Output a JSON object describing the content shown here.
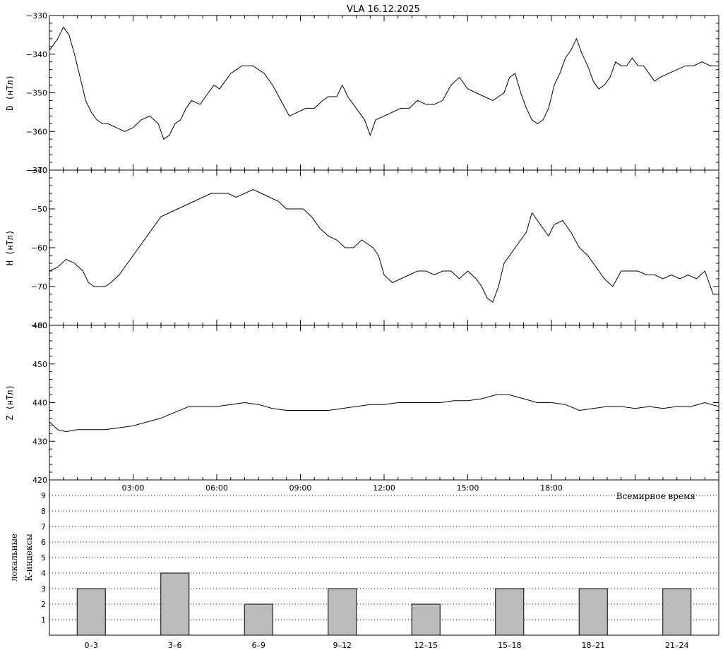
{
  "title": "VLA   16.12.2025",
  "chart_data": [
    {
      "type": "line",
      "ylabel": "D (нТл)",
      "ylim": [
        -370,
        -330
      ],
      "yticks": [
        -370,
        -360,
        -350,
        -340,
        -330
      ],
      "x_unit": "hours UT",
      "xlim": [
        0,
        24
      ],
      "series": [
        {
          "x": [
            0,
            0.3,
            0.5,
            0.7,
            0.9,
            1.1,
            1.3,
            1.5,
            1.7,
            1.9,
            2.1,
            2.4,
            2.7,
            3,
            3.3,
            3.6,
            3.9,
            4.1,
            4.3,
            4.5,
            4.7,
            4.9,
            5.1,
            5.4,
            5.7,
            5.9,
            6.1,
            6.3,
            6.5,
            6.7,
            6.9,
            7.1,
            7.3,
            7.5,
            7.7,
            8,
            8.3,
            8.6,
            8.9,
            9.2,
            9.5,
            9.8,
            10,
            10.3,
            10.5,
            10.7,
            10.9,
            11.1,
            11.3,
            11.5,
            11.7,
            12,
            12.3,
            12.6,
            12.9,
            13.2,
            13.5,
            13.8,
            14.1,
            14.4,
            14.7,
            15,
            15.3,
            15.6,
            15.9,
            16.1,
            16.3,
            16.5,
            16.7,
            16.9,
            17.1,
            17.3,
            17.5,
            17.7,
            17.9,
            18.1,
            18.3,
            18.5,
            18.7,
            18.9,
            19.1,
            19.3,
            19.5,
            19.7,
            19.9,
            20.1,
            20.3,
            20.5,
            20.7,
            20.9,
            21.1,
            21.3,
            21.5,
            21.7,
            21.9,
            22.2,
            22.5,
            22.8,
            23.1,
            23.4,
            23.7,
            24
          ],
          "y": [
            -339,
            -336,
            -333,
            -335,
            -340,
            -346,
            -352,
            -355,
            -357,
            -358,
            -358,
            -359,
            -360,
            -359,
            -357,
            -356,
            -358,
            -362,
            -361,
            -358,
            -357,
            -354,
            -352,
            -353,
            -350,
            -348,
            -349,
            -347,
            -345,
            -344,
            -343,
            -343,
            -343,
            -344,
            -345,
            -348,
            -352,
            -356,
            -355,
            -354,
            -354,
            -352,
            -351,
            -351,
            -348,
            -351,
            -353,
            -355,
            -357,
            -361,
            -357,
            -356,
            -355,
            -354,
            -354,
            -352,
            -353,
            -353,
            -352,
            -348,
            -346,
            -349,
            -350,
            -351,
            -352,
            -351,
            -350,
            -346,
            -345,
            -350,
            -354,
            -357,
            -358,
            -357,
            -354,
            -348,
            -345,
            -341,
            -339,
            -336,
            -340,
            -343,
            -347,
            -349,
            -348,
            -346,
            -342,
            -343,
            -343,
            -341,
            -343,
            -343,
            -345,
            -347,
            -346,
            -345,
            -344,
            -343,
            -343,
            -342,
            -343,
            -343
          ]
        }
      ]
    },
    {
      "type": "line",
      "ylabel": "H (нТл)",
      "ylim": [
        -80,
        -40
      ],
      "yticks": [
        -80,
        -70,
        -60,
        -50,
        -40
      ],
      "x_unit": "hours UT",
      "xlim": [
        0,
        24
      ],
      "series": [
        {
          "x": [
            0,
            0.3,
            0.6,
            0.9,
            1.2,
            1.4,
            1.6,
            1.8,
            2,
            2.2,
            2.5,
            2.8,
            3.1,
            3.4,
            3.7,
            4,
            4.3,
            4.6,
            4.9,
            5.2,
            5.5,
            5.8,
            6.1,
            6.4,
            6.7,
            7,
            7.3,
            7.6,
            7.9,
            8.2,
            8.5,
            8.8,
            9.1,
            9.4,
            9.7,
            10,
            10.3,
            10.6,
            10.9,
            11.2,
            11.4,
            11.6,
            11.8,
            12,
            12.3,
            12.6,
            12.9,
            13.2,
            13.5,
            13.8,
            14.1,
            14.4,
            14.7,
            15,
            15.3,
            15.5,
            15.7,
            15.9,
            16.1,
            16.3,
            16.5,
            16.7,
            16.9,
            17.1,
            17.3,
            17.5,
            17.7,
            17.9,
            18.1,
            18.4,
            18.7,
            19,
            19.3,
            19.6,
            19.9,
            20.2,
            20.5,
            20.8,
            21.1,
            21.4,
            21.7,
            22,
            22.3,
            22.6,
            22.9,
            23.2,
            23.5,
            23.8,
            24
          ],
          "y": [
            -66,
            -65,
            -63,
            -64,
            -66,
            -69,
            -70,
            -70,
            -70,
            -69,
            -67,
            -64,
            -61,
            -58,
            -55,
            -52,
            -51,
            -50,
            -49,
            -48,
            -47,
            -46,
            -46,
            -46,
            -47,
            -46,
            -45,
            -46,
            -47,
            -48,
            -50,
            -50,
            -50,
            -52,
            -55,
            -57,
            -58,
            -60,
            -60,
            -58,
            -59,
            -60,
            -62,
            -67,
            -69,
            -68,
            -67,
            -66,
            -66,
            -67,
            -66,
            -66,
            -68,
            -66,
            -68,
            -70,
            -73,
            -74,
            -70,
            -64,
            -62,
            -60,
            -58,
            -56,
            -51,
            -53,
            -55,
            -57,
            -54,
            -53,
            -56,
            -60,
            -62,
            -65,
            -68,
            -70,
            -66,
            -66,
            -66,
            -67,
            -67,
            -68,
            -67,
            -68,
            -67,
            -68,
            -66,
            -72,
            -72
          ]
        }
      ]
    },
    {
      "type": "line",
      "ylabel": "Z (нТл)",
      "ylim": [
        420,
        460
      ],
      "yticks": [
        420,
        430,
        440,
        450,
        460
      ],
      "x_unit": "hours UT",
      "xlim": [
        0,
        24
      ],
      "xticks": [
        "03:00",
        "06:00",
        "09:00",
        "12:00",
        "15:00",
        "18:00"
      ],
      "xlabel": "Всемирное время",
      "series": [
        {
          "x": [
            0,
            0.3,
            0.6,
            1,
            1.5,
            2,
            2.5,
            3,
            3.5,
            4,
            4.5,
            5,
            5.5,
            6,
            6.5,
            7,
            7.5,
            8,
            8.5,
            9,
            9.5,
            10,
            10.5,
            11,
            11.5,
            12,
            12.5,
            13,
            13.5,
            14,
            14.5,
            15,
            15.5,
            16,
            16.5,
            17,
            17.5,
            18,
            18.5,
            19,
            19.5,
            20,
            20.5,
            21,
            21.5,
            22,
            22.5,
            23,
            23.5,
            24
          ],
          "y": [
            435,
            433,
            432.5,
            433,
            433,
            433,
            433.5,
            434,
            435,
            436,
            437.5,
            439,
            439,
            439,
            439.5,
            440,
            439.5,
            438.5,
            438,
            438,
            438,
            438,
            438.5,
            439,
            439.5,
            439.5,
            440,
            440,
            440,
            440,
            440.5,
            440.5,
            441,
            442,
            442,
            441,
            440,
            440,
            439.5,
            438,
            438.5,
            439,
            439,
            438.5,
            439,
            438.5,
            439,
            439,
            440,
            439
          ]
        }
      ]
    },
    {
      "type": "bar",
      "ylabel": "К-индексы",
      "ylabel2": "локальные",
      "ylim": [
        0,
        10
      ],
      "yticks": [
        1,
        2,
        3,
        4,
        5,
        6,
        7,
        8,
        9
      ],
      "categories": [
        "0–3",
        "3–6",
        "6–9",
        "9–12",
        "12–15",
        "15–18",
        "18–21",
        "21–24"
      ],
      "values": [
        3,
        4,
        2,
        3,
        2,
        3,
        3,
        3
      ],
      "bar_color": "#bbbbbb",
      "grid": true
    }
  ]
}
